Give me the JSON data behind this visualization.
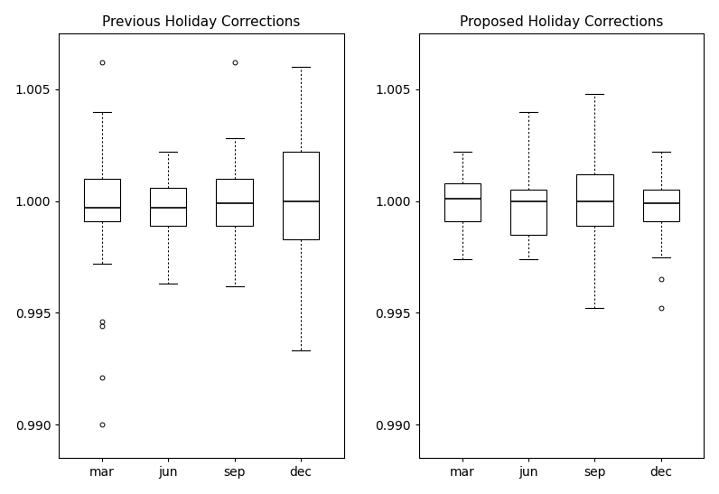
{
  "title_left": "Previous Holiday Corrections",
  "title_right": "Proposed Holiday Corrections",
  "categories": [
    "mar",
    "jun",
    "sep",
    "dec"
  ],
  "ylim": [
    0.9885,
    1.0075
  ],
  "yticks": [
    0.99,
    0.995,
    1.0,
    1.005
  ],
  "prev": {
    "mar": {
      "whisker_low": 0.9972,
      "q1": 0.9991,
      "median": 0.9997,
      "q3": 1.001,
      "whisker_high": 1.004,
      "fliers_low": [
        0.9946,
        0.9944,
        0.9921,
        0.99
      ],
      "fliers_high": [
        1.0062
      ]
    },
    "jun": {
      "whisker_low": 0.9963,
      "q1": 0.9989,
      "median": 0.9997,
      "q3": 1.0006,
      "whisker_high": 1.0022,
      "fliers_low": [],
      "fliers_high": []
    },
    "sep": {
      "whisker_low": 0.9962,
      "q1": 0.9989,
      "median": 0.9999,
      "q3": 1.001,
      "whisker_high": 1.0028,
      "fliers_low": [],
      "fliers_high": [
        1.0062
      ]
    },
    "dec": {
      "whisker_low": 0.9933,
      "q1": 0.9983,
      "median": 1.0,
      "q3": 1.0022,
      "whisker_high": 1.006,
      "fliers_low": [],
      "fliers_high": []
    }
  },
  "prop": {
    "mar": {
      "whisker_low": 0.9974,
      "q1": 0.9991,
      "median": 1.0001,
      "q3": 1.0008,
      "whisker_high": 1.0022,
      "fliers_low": [],
      "fliers_high": []
    },
    "jun": {
      "whisker_low": 0.9974,
      "q1": 0.9985,
      "median": 1.0,
      "q3": 1.0005,
      "whisker_high": 1.004,
      "fliers_low": [],
      "fliers_high": []
    },
    "sep": {
      "whisker_low": 0.9952,
      "q1": 0.9989,
      "median": 1.0,
      "q3": 1.0012,
      "whisker_high": 1.0048,
      "fliers_low": [],
      "fliers_high": []
    },
    "dec": {
      "whisker_low": 0.9975,
      "q1": 0.9991,
      "median": 0.9999,
      "q3": 1.0005,
      "whisker_high": 1.0022,
      "fliers_low": [
        0.9965,
        0.9952
      ],
      "fliers_high": []
    }
  },
  "box_facecolor": "white",
  "line_color": "black",
  "flier_color": "black",
  "background_color": "white",
  "fontsize": 10,
  "title_fontsize": 11
}
